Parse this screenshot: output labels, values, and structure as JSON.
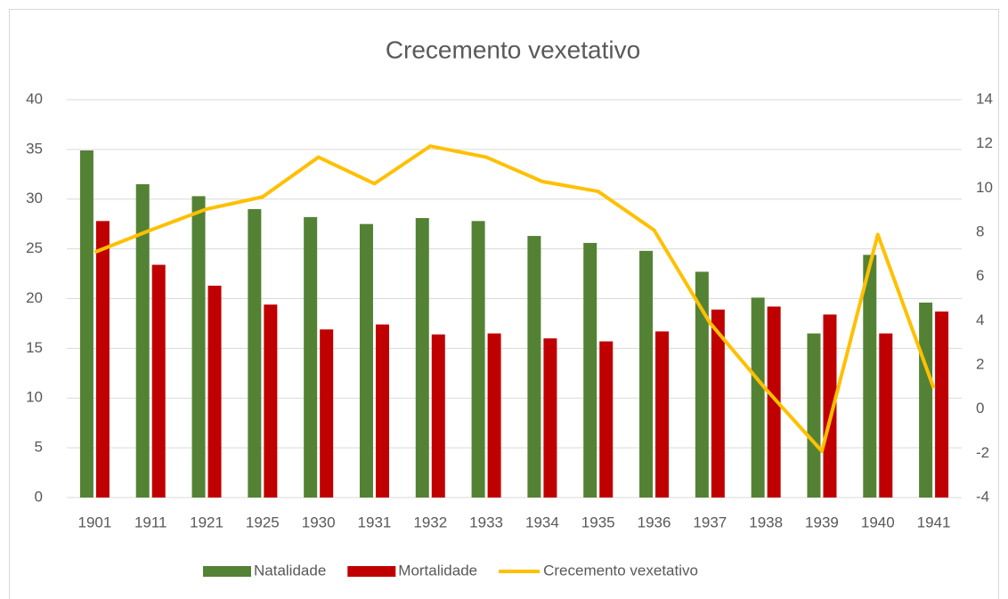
{
  "chart_data": {
    "type": "bar-line",
    "title": "Crecemento vexetativo",
    "categories": [
      "1901",
      "1911",
      "1921",
      "1925",
      "1930",
      "1931",
      "1932",
      "1933",
      "1934",
      "1935",
      "1936",
      "1937",
      "1938",
      "1939",
      "1940",
      "1941"
    ],
    "series": [
      {
        "name": "Natalidade",
        "color": "#548235",
        "type": "bar",
        "values": [
          34.9,
          31.5,
          30.3,
          29.0,
          28.2,
          27.5,
          28.1,
          27.8,
          26.3,
          25.6,
          24.8,
          22.7,
          20.1,
          16.5,
          24.4,
          19.6
        ]
      },
      {
        "name": "Mortalidade",
        "color": "#c00000",
        "type": "bar",
        "values": [
          27.8,
          23.4,
          21.3,
          19.4,
          16.9,
          17.4,
          16.4,
          16.5,
          16.0,
          15.7,
          16.7,
          18.9,
          19.2,
          18.4,
          16.5,
          18.7
        ]
      },
      {
        "name": "Crecemento vexetativo",
        "color": "#ffc000",
        "type": "line",
        "axis": "y2",
        "values": [
          7.1,
          8.1,
          9.05,
          9.6,
          11.4,
          10.2,
          11.9,
          11.4,
          10.3,
          9.85,
          8.1,
          3.9,
          0.9,
          -1.9,
          7.9,
          0.95
        ]
      }
    ],
    "ylim": [
      0,
      40
    ],
    "yticks": [
      0,
      5,
      10,
      15,
      20,
      25,
      30,
      35,
      40
    ],
    "y2lim": [
      -4,
      14
    ],
    "y2ticks": [
      -4,
      -2,
      0,
      2,
      4,
      6,
      8,
      10,
      12,
      14
    ],
    "grid": true,
    "legend": "bottom"
  }
}
